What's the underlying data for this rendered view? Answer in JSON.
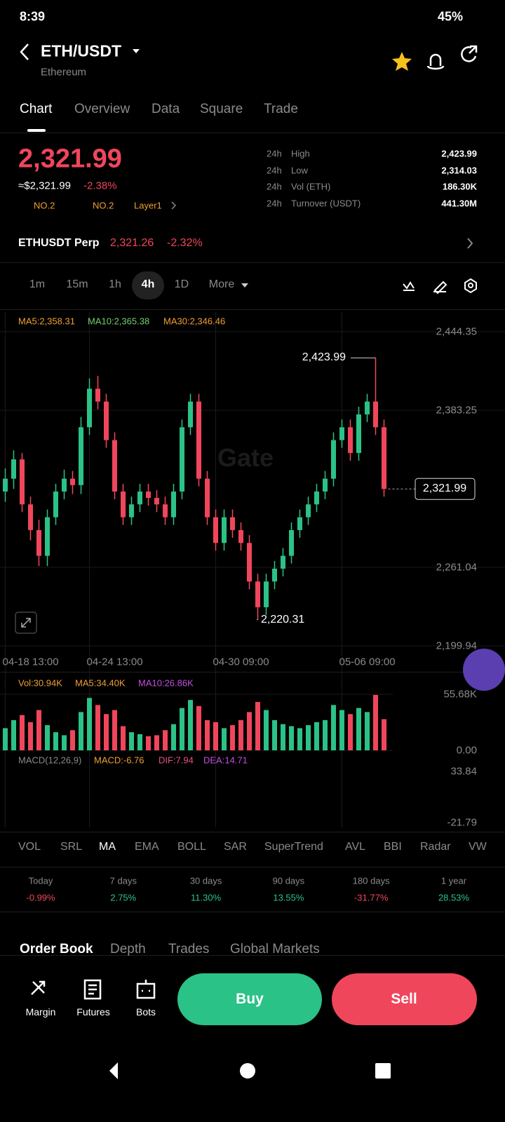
{
  "status_bar": {
    "time": "8:39",
    "battery": "45%"
  },
  "header": {
    "pair": "ETH/USDT",
    "name": "Ethereum"
  },
  "tabs": [
    "Chart",
    "Overview",
    "Data",
    "Square",
    "Trade"
  ],
  "price": {
    "last": "2,321.99",
    "fiat": "≈$2,321.99",
    "change": "-2.38%",
    "tags": [
      "NO.2",
      "NO.2",
      "Layer1"
    ]
  },
  "stats": [
    {
      "period": "24h",
      "label": "High",
      "value": "2,423.99"
    },
    {
      "period": "24h",
      "label": "Low",
      "value": "2,314.03"
    },
    {
      "period": "24h",
      "label": "Vol (ETH)",
      "value": "186.30K"
    },
    {
      "period": "24h",
      "label": "Turnover (USDT)",
      "value": "441.30M"
    }
  ],
  "perp": {
    "name": "ETHUSDT Perp",
    "price": "2,321.26",
    "change": "-2.32%"
  },
  "intervals": [
    "1m",
    "15m",
    "1h",
    "4h",
    "1D",
    "More"
  ],
  "chart_data": {
    "type": "candlestick",
    "up_color": "#2bc287",
    "down_color": "#f0465c",
    "ma_labels": [
      "MA5:2,358.31",
      "MA10:2,365.38",
      "MA30:2,346.46"
    ],
    "categories": [
      "04-18 13:00",
      null,
      null,
      null,
      null,
      null,
      null,
      null,
      null,
      null,
      "04-24 13:00",
      null,
      null,
      null,
      null,
      null,
      null,
      null,
      null,
      null,
      null,
      null,
      null,
      null,
      null,
      "04-30 09:00",
      null,
      null,
      null,
      null,
      null,
      null,
      null,
      null,
      null,
      null,
      null,
      null,
      null,
      null,
      "05-06 09:00",
      null,
      null,
      null,
      null,
      null
    ],
    "open": [
      2320,
      2330,
      2345,
      2310,
      2290,
      2270,
      2300,
      2320,
      2330,
      2325,
      2370,
      2400,
      2390,
      2360,
      2320,
      2300,
      2310,
      2320,
      2315,
      2310,
      2300,
      2320,
      2370,
      2390,
      2330,
      2300,
      2280,
      2300,
      2290,
      2280,
      2250,
      2230,
      2250,
      2260,
      2270,
      2290,
      2300,
      2310,
      2320,
      2330,
      2360,
      2370,
      2350,
      2380,
      2390,
      2370
    ],
    "high": [
      2338,
      2352,
      2350,
      2316,
      2298,
      2306,
      2326,
      2337,
      2336,
      2378,
      2408,
      2410,
      2396,
      2366,
      2326,
      2316,
      2326,
      2326,
      2321,
      2316,
      2326,
      2376,
      2396,
      2396,
      2336,
      2306,
      2306,
      2306,
      2296,
      2286,
      2256,
      2256,
      2266,
      2276,
      2296,
      2306,
      2316,
      2326,
      2336,
      2366,
      2376,
      2376,
      2386,
      2396,
      2423.99,
      2376
    ],
    "low": [
      2312,
      2322,
      2304,
      2282,
      2262,
      2262,
      2294,
      2314,
      2318,
      2318,
      2364,
      2384,
      2354,
      2314,
      2294,
      2294,
      2304,
      2309,
      2304,
      2294,
      2294,
      2314,
      2364,
      2324,
      2294,
      2274,
      2274,
      2284,
      2274,
      2244,
      2220.31,
      2224,
      2244,
      2254,
      2264,
      2284,
      2294,
      2304,
      2314,
      2324,
      2354,
      2344,
      2344,
      2374,
      2364,
      2316
    ],
    "close": [
      2330,
      2345,
      2310,
      2290,
      2270,
      2300,
      2320,
      2330,
      2325,
      2370,
      2400,
      2390,
      2360,
      2320,
      2300,
      2310,
      2320,
      2315,
      2310,
      2300,
      2320,
      2370,
      2390,
      2330,
      2300,
      2280,
      2300,
      2290,
      2280,
      2250,
      2230,
      2250,
      2260,
      2270,
      2290,
      2300,
      2310,
      2320,
      2330,
      2360,
      2370,
      2350,
      2380,
      2390,
      2370,
      2321.99
    ],
    "ylim": [
      2199.94,
      2444.35
    ],
    "yticks": [
      {
        "value": 2444.35,
        "label": "2,444.35"
      },
      {
        "value": 2383.25,
        "label": "2,383.25"
      },
      {
        "value": 2261.04,
        "label": "2,261.04"
      },
      {
        "value": 2199.94,
        "label": "2,199.94"
      }
    ],
    "last_price": {
      "value": 2321.99,
      "label": "2,321.99"
    },
    "high_marker": {
      "value": 2423.99,
      "label": "2,423.99"
    },
    "low_marker": {
      "value": 2220.31,
      "label": "2,220.31"
    },
    "volume": {
      "labels": [
        "Vol:30.94K",
        "MA5:34.40K",
        "MA10:26.86K"
      ],
      "values": [
        22,
        30,
        35,
        28,
        40,
        25,
        18,
        15,
        20,
        38,
        52,
        45,
        36,
        40,
        24,
        18,
        16,
        14,
        15,
        20,
        26,
        42,
        50,
        44,
        30,
        28,
        22,
        25,
        30,
        38,
        48,
        40,
        30,
        26,
        24,
        22,
        25,
        28,
        30,
        45,
        40,
        36,
        42,
        38,
        55,
        30.94
      ],
      "ylim": [
        0,
        55.68
      ],
      "yticks": [
        {
          "value": 55.68,
          "label": "55.68K"
        },
        {
          "value": 0,
          "label": "0.00"
        }
      ]
    },
    "macd": {
      "labels": [
        "MACD(12,26,9)",
        "MACD:-6.76",
        "DIF:7.94",
        "DEA:14.71"
      ],
      "yticks": [
        "33.84",
        "-21.79"
      ]
    }
  },
  "indicators": [
    "VOL",
    "SRL",
    "MA",
    "EMA",
    "BOLL",
    "SAR",
    "SuperTrend",
    "AVL",
    "BBI",
    "Radar",
    "VW"
  ],
  "performance": [
    {
      "period": "Today",
      "change": "-0.99%"
    },
    {
      "period": "7 days",
      "change": "2.75%"
    },
    {
      "period": "30 days",
      "change": "11.30%"
    },
    {
      "period": "90 days",
      "change": "13.55%"
    },
    {
      "period": "180 days",
      "change": "-31.77%"
    },
    {
      "period": "1 year",
      "change": "28.53%"
    }
  ],
  "order_tabs": [
    "Order Book",
    "Depth",
    "Trades",
    "Global Markets"
  ],
  "bottom": {
    "tools": [
      "Margin",
      "Futures",
      "Bots"
    ],
    "buy": "Buy",
    "sell": "Sell"
  }
}
